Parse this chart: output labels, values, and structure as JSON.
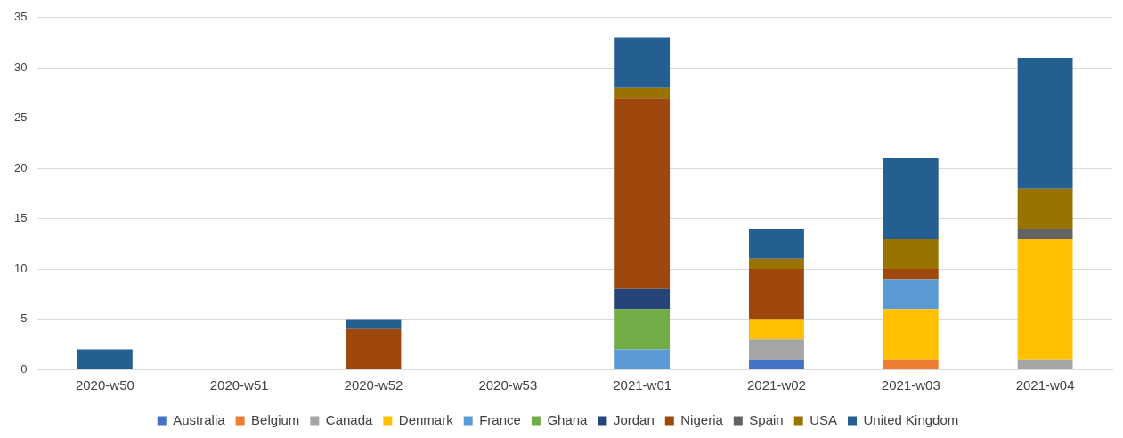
{
  "chart_data": {
    "type": "bar",
    "stacked": true,
    "categories": [
      "2020-w50",
      "2020-w51",
      "2020-w52",
      "2020-w53",
      "2021-w01",
      "2021-w02",
      "2021-w03",
      "2021-w04"
    ],
    "ylim": [
      0,
      35
    ],
    "yticks": [
      0,
      5,
      10,
      15,
      20,
      25,
      30,
      35
    ],
    "grid": "y",
    "legend": "bottom",
    "series": [
      {
        "name": "Australia",
        "color": "#4472c4",
        "values": [
          0,
          0,
          0,
          0,
          0,
          1,
          0,
          0
        ]
      },
      {
        "name": "Belgium",
        "color": "#ed7d31",
        "values": [
          0,
          0,
          0,
          0,
          0,
          0,
          1,
          0
        ]
      },
      {
        "name": "Canada",
        "color": "#a5a5a5",
        "values": [
          0,
          0,
          0,
          0,
          0,
          2,
          0,
          1
        ]
      },
      {
        "name": "Denmark",
        "color": "#ffc000",
        "values": [
          0,
          0,
          0,
          0,
          0,
          2,
          5,
          12
        ]
      },
      {
        "name": "France",
        "color": "#5b9bd5",
        "values": [
          0,
          0,
          0,
          0,
          2,
          0,
          3,
          0
        ]
      },
      {
        "name": "Ghana",
        "color": "#70ad47",
        "values": [
          0,
          0,
          0,
          0,
          4,
          0,
          0,
          0
        ]
      },
      {
        "name": "Jordan",
        "color": "#264478",
        "values": [
          0,
          0,
          0,
          0,
          2,
          0,
          0,
          0
        ]
      },
      {
        "name": "Nigeria",
        "color": "#9e480e",
        "values": [
          0,
          0,
          4,
          0,
          19,
          5,
          1,
          0
        ]
      },
      {
        "name": "Spain",
        "color": "#636363",
        "values": [
          0,
          0,
          0,
          0,
          0,
          0,
          0,
          1
        ]
      },
      {
        "name": "USA",
        "color": "#997300",
        "values": [
          0,
          0,
          0,
          0,
          1,
          1,
          3,
          4
        ]
      },
      {
        "name": "United Kingdom",
        "color": "#255e91",
        "values": [
          2,
          0,
          1,
          0,
          5,
          3,
          8,
          13
        ]
      }
    ]
  }
}
